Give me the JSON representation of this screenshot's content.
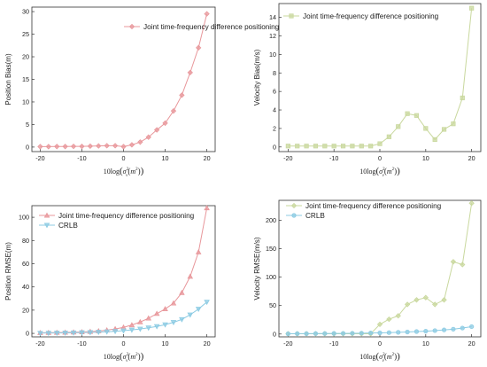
{
  "xlabel_prefix": "10log",
  "xlabel_sigma": "σ",
  "xlabel_sup": "2",
  "xlabel_sub": "v",
  "xlabel_unit": "m",
  "xlabel_unit_sup": "2",
  "colors": {
    "joint_pos": "#e8979b",
    "joint_vel": "#c9d89e",
    "crlb": "#8ccbe3"
  },
  "chart_data": [
    {
      "type": "line",
      "ylabel": "Position Bias(m)",
      "xlim": [
        -22,
        22
      ],
      "ylim": [
        -1,
        31
      ],
      "xticks": [
        -20,
        -10,
        0,
        10,
        20
      ],
      "xtick_labels": [
        "-20",
        "-10",
        "0",
        "10",
        "20"
      ],
      "yticks": [
        0,
        5,
        10,
        15,
        20,
        25,
        30
      ],
      "ytick_labels": [
        "0",
        "5",
        "10",
        "15",
        "20",
        "25",
        "30"
      ],
      "legend_position": "top-right",
      "series": [
        {
          "name": "Joint time-frequency difference positioning",
          "color_key": "joint_pos",
          "marker": "diamond",
          "x": [
            -20,
            -18,
            -16,
            -14,
            -12,
            -10,
            -8,
            -6,
            -4,
            -2,
            0,
            2,
            4,
            6,
            8,
            10,
            12,
            14,
            16,
            18,
            20
          ],
          "y": [
            0.1,
            0.1,
            0.12,
            0.12,
            0.15,
            0.15,
            0.2,
            0.25,
            0.3,
            0.3,
            0.1,
            0.5,
            1.1,
            2.2,
            3.8,
            5.3,
            8.0,
            11.5,
            16.5,
            22.0,
            29.5
          ]
        }
      ]
    },
    {
      "type": "line",
      "ylabel": "Velocity Bias(m/s)",
      "xlim": [
        -22,
        22
      ],
      "ylim": [
        -0.5,
        15.5
      ],
      "xticks": [
        -20,
        -10,
        0,
        10,
        20
      ],
      "xtick_labels": [
        "-20",
        "-10",
        "0",
        "10",
        "20"
      ],
      "yticks": [
        0,
        2,
        4,
        6,
        8,
        10,
        12,
        14
      ],
      "ytick_labels": [
        "0",
        "2",
        "4",
        "6",
        "8",
        "10",
        "12",
        "14"
      ],
      "legend_position": "top-right",
      "series": [
        {
          "name": "Joint time-frequency difference positioning",
          "color_key": "joint_vel",
          "marker": "square",
          "x": [
            -20,
            -18,
            -16,
            -14,
            -12,
            -10,
            -8,
            -6,
            -4,
            -2,
            0,
            2,
            4,
            6,
            8,
            10,
            12,
            14,
            16,
            18,
            20
          ],
          "y": [
            0.1,
            0.1,
            0.1,
            0.1,
            0.1,
            0.1,
            0.1,
            0.1,
            0.1,
            0.1,
            0.35,
            1.1,
            2.2,
            3.6,
            3.4,
            2.0,
            0.8,
            1.9,
            2.5,
            5.3,
            15.0
          ]
        }
      ]
    },
    {
      "type": "line",
      "ylabel": "Position RMSE(m)",
      "xlim": [
        -22,
        22
      ],
      "ylim": [
        -3,
        110
      ],
      "xticks": [
        -20,
        -10,
        0,
        10,
        20
      ],
      "xtick_labels": [
        "-20",
        "-10",
        "0",
        "10",
        "20"
      ],
      "yticks": [
        0,
        20,
        40,
        60,
        80,
        100
      ],
      "ytick_labels": [
        "0",
        "20",
        "40",
        "60",
        "80",
        "100"
      ],
      "legend_position": "top-left",
      "series": [
        {
          "name": "Joint time-frequency difference positioning",
          "color_key": "joint_pos",
          "marker": "triangle-up",
          "x": [
            -20,
            -18,
            -16,
            -14,
            -12,
            -10,
            -8,
            -6,
            -4,
            -2,
            0,
            2,
            4,
            6,
            8,
            10,
            12,
            14,
            16,
            18,
            20
          ],
          "y": [
            0.5,
            0.6,
            0.7,
            0.8,
            1.0,
            1.2,
            1.5,
            2.0,
            2.8,
            3.8,
            5.2,
            7.2,
            9.8,
            13.0,
            17.0,
            21.0,
            26.0,
            35.0,
            49.0,
            70.0,
            108.0
          ]
        },
        {
          "name": "CRLB",
          "color_key": "crlb",
          "marker": "triangle-down",
          "x": [
            -20,
            -18,
            -16,
            -14,
            -12,
            -10,
            -8,
            -6,
            -4,
            -2,
            0,
            2,
            4,
            6,
            8,
            10,
            12,
            14,
            16,
            18,
            20
          ],
          "y": [
            0.2,
            0.3,
            0.35,
            0.45,
            0.55,
            0.7,
            0.85,
            1.1,
            1.4,
            1.8,
            2.3,
            3.0,
            3.8,
            4.8,
            6.0,
            7.5,
            9.5,
            12.0,
            16.0,
            21.0,
            27.0
          ]
        }
      ]
    },
    {
      "type": "line",
      "ylabel": "Velocity RMSE(m/s)",
      "xlim": [
        -22,
        22
      ],
      "ylim": [
        -5,
        235
      ],
      "xticks": [
        -20,
        -10,
        0,
        10,
        20
      ],
      "xtick_labels": [
        "-20",
        "-10",
        "0",
        "10",
        "20"
      ],
      "yticks": [
        0,
        50,
        100,
        150,
        200
      ],
      "ytick_labels": [
        "0",
        "50",
        "100",
        "150",
        "200"
      ],
      "legend_position": "top-left",
      "series": [
        {
          "name": "Joint time-frequency difference positioning",
          "color_key": "joint_vel",
          "marker": "diamond",
          "x": [
            -20,
            -18,
            -16,
            -14,
            -12,
            -10,
            -8,
            -6,
            -4,
            -2,
            0,
            2,
            4,
            6,
            8,
            10,
            12,
            14,
            16,
            18,
            20
          ],
          "y": [
            0.5,
            0.5,
            0.5,
            0.5,
            0.5,
            0.5,
            0.5,
            0.5,
            0.5,
            0.5,
            17,
            26,
            32,
            52,
            60,
            64,
            52,
            60,
            127,
            122,
            230
          ]
        },
        {
          "name": "CRLB",
          "color_key": "crlb",
          "marker": "circle",
          "x": [
            -20,
            -18,
            -16,
            -14,
            -12,
            -10,
            -8,
            -6,
            -4,
            -2,
            0,
            2,
            4,
            6,
            8,
            10,
            12,
            14,
            16,
            18,
            20
          ],
          "y": [
            0.5,
            0.6,
            0.7,
            0.8,
            0.9,
            1.0,
            1.1,
            1.3,
            1.5,
            1.8,
            2.0,
            2.5,
            3.0,
            3.6,
            4.3,
            5.0,
            6.0,
            7.2,
            8.5,
            10.5,
            13.0
          ]
        }
      ]
    }
  ]
}
